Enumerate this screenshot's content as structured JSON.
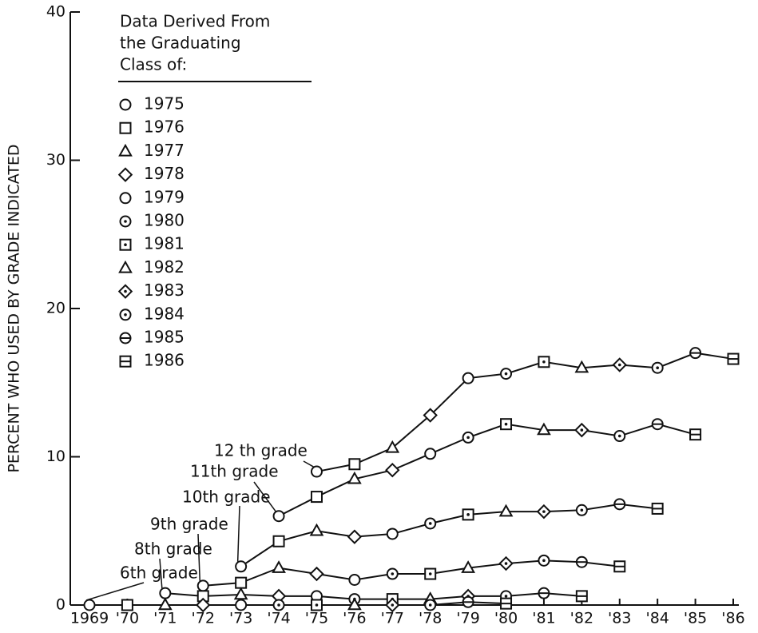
{
  "chart_data": {
    "type": "line",
    "ylabel": "PERCENT WHO USED BY GRADE INDICATED",
    "xlim": [
      1969,
      1986
    ],
    "xticks": [
      {
        "value": 1969,
        "label": "1969"
      },
      {
        "value": 1970,
        "label": "'70"
      },
      {
        "value": 1971,
        "label": "'71"
      },
      {
        "value": 1972,
        "label": "'72"
      },
      {
        "value": 1973,
        "label": "'73"
      },
      {
        "value": 1974,
        "label": "'74"
      },
      {
        "value": 1975,
        "label": "'75"
      },
      {
        "value": 1976,
        "label": "'76"
      },
      {
        "value": 1977,
        "label": "'77"
      },
      {
        "value": 1978,
        "label": "'78"
      },
      {
        "value": 1979,
        "label": "'79"
      },
      {
        "value": 1980,
        "label": "'80"
      },
      {
        "value": 1981,
        "label": "'81"
      },
      {
        "value": 1982,
        "label": "'82"
      },
      {
        "value": 1983,
        "label": "'83"
      },
      {
        "value": 1984,
        "label": "'84"
      },
      {
        "value": 1985,
        "label": "'85"
      },
      {
        "value": 1986,
        "label": "'86"
      }
    ],
    "ylim": [
      0,
      40
    ],
    "yticks": [
      0,
      10,
      20,
      30,
      40
    ],
    "color": "#111111",
    "legend_title": [
      "Data Derived From",
      "the Graduating",
      "Class of:"
    ],
    "legend": [
      {
        "label": "1975",
        "marker": "circle"
      },
      {
        "label": "1976",
        "marker": "square"
      },
      {
        "label": "1977",
        "marker": "triangle"
      },
      {
        "label": "1978",
        "marker": "diamond"
      },
      {
        "label": "1979",
        "marker": "circle"
      },
      {
        "label": "1980",
        "marker": "circle-dot"
      },
      {
        "label": "1981",
        "marker": "square-dot"
      },
      {
        "label": "1982",
        "marker": "triangle"
      },
      {
        "label": "1983",
        "marker": "diamond-dot"
      },
      {
        "label": "1984",
        "marker": "circle-dot"
      },
      {
        "label": "1985",
        "marker": "circle-line"
      },
      {
        "label": "1986",
        "marker": "square-line"
      }
    ],
    "series": [
      {
        "name": "12 th grade",
        "x": [
          1975,
          1976,
          1977,
          1978,
          1979,
          1980,
          1981,
          1982,
          1983,
          1984,
          1985,
          1986
        ],
        "values": [
          9.0,
          9.5,
          10.6,
          12.8,
          15.3,
          15.6,
          16.4,
          16.0,
          16.2,
          16.0,
          17.0,
          16.6
        ]
      },
      {
        "name": "11th grade",
        "x": [
          1974,
          1975,
          1976,
          1977,
          1978,
          1979,
          1980,
          1981,
          1982,
          1983,
          1984,
          1985
        ],
        "values": [
          6.0,
          7.3,
          8.5,
          9.1,
          10.2,
          11.3,
          12.2,
          11.8,
          11.8,
          11.4,
          12.2,
          11.5
        ]
      },
      {
        "name": "10th grade",
        "x": [
          1973,
          1974,
          1975,
          1976,
          1977,
          1978,
          1979,
          1980,
          1981,
          1982,
          1983,
          1984
        ],
        "values": [
          2.6,
          4.3,
          5.0,
          4.6,
          4.8,
          5.5,
          6.1,
          6.3,
          6.3,
          6.4,
          6.8,
          6.5
        ]
      },
      {
        "name": "9th grade",
        "x": [
          1972,
          1973,
          1974,
          1975,
          1976,
          1977,
          1978,
          1979,
          1980,
          1981,
          1982,
          1983
        ],
        "values": [
          1.3,
          1.5,
          2.5,
          2.1,
          1.7,
          2.1,
          2.1,
          2.5,
          2.8,
          3.0,
          2.9,
          2.6
        ]
      },
      {
        "name": "8th grade",
        "x": [
          1971,
          1972,
          1973,
          1974,
          1975,
          1976,
          1977,
          1978,
          1979,
          1980,
          1981,
          1982
        ],
        "values": [
          0.8,
          0.6,
          0.7,
          0.6,
          0.6,
          0.4,
          0.4,
          0.4,
          0.6,
          0.6,
          0.8,
          0.6
        ]
      },
      {
        "name": "6th grade",
        "x": [
          1969,
          1970,
          1971,
          1972,
          1973,
          1974,
          1975,
          1976,
          1977,
          1978,
          1979,
          1980
        ],
        "values": [
          0,
          0,
          0,
          0,
          0,
          0,
          0,
          0,
          0,
          0,
          0.2,
          0.1
        ]
      }
    ]
  }
}
